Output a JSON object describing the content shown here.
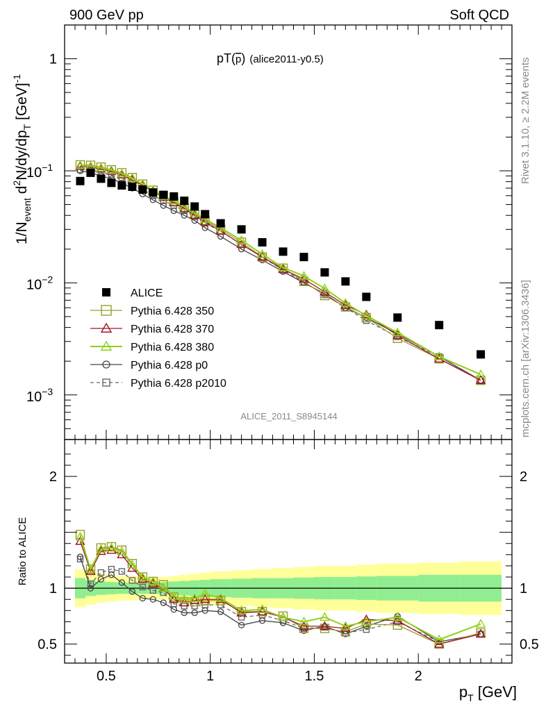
{
  "header": {
    "left": "900 GeV pp",
    "right": "Soft QCD"
  },
  "side_text": {
    "top": "Rivet 3.1.10, ≥ 2.2M events",
    "bottom": "mcplots.cern.ch [arXiv:1306.3436]"
  },
  "colors": {
    "alice": "#000000",
    "p350": "#9b9b2a",
    "p370": "#a0162a",
    "p380": "#8fd11c",
    "p0": "#444444",
    "p2010": "#666666",
    "band_inner": "#90ee90",
    "band_outer": "#ffff99"
  },
  "chart_data": [
    {
      "type": "scatter",
      "panel": "main",
      "title": "pT(p̅) (alice2011-y0.5)",
      "title_main": "pT(",
      "title_p": "p",
      "title_close": ")",
      "title_suffix": "(alice2011-y0.5)",
      "ylabel": "1/N_event d²N/dy/dp_T [GeV⁻¹]",
      "ylabel_parts": {
        "a": "1/N",
        "b": "event",
        "c": " d",
        "d": "2",
        "e": "N/dy/dp",
        "f": "T",
        "g": " [GeV]",
        "h": "-1"
      },
      "yscale": "log",
      "ylim": [
        0.0004,
        2
      ],
      "xlim": [
        0.3,
        2.45
      ],
      "y_ticks": [
        {
          "value": 1,
          "label": "1"
        },
        {
          "value": 0.1,
          "base": "10",
          "exp": "−1"
        },
        {
          "value": 0.01,
          "base": "10",
          "exp": "−2"
        },
        {
          "value": 0.001,
          "base": "10",
          "exp": "−3"
        }
      ],
      "watermark": "ALICE_2011_S8945144",
      "legend_position": "middle-left",
      "x": [
        0.375,
        0.425,
        0.475,
        0.525,
        0.575,
        0.625,
        0.675,
        0.725,
        0.775,
        0.825,
        0.875,
        0.925,
        0.975,
        1.05,
        1.15,
        1.25,
        1.35,
        1.45,
        1.55,
        1.65,
        1.75,
        1.9,
        2.1,
        2.3
      ],
      "series": [
        {
          "key": "alice",
          "name": "ALICE",
          "marker": "square-filled",
          "values": [
            0.081,
            0.096,
            0.085,
            0.078,
            0.074,
            0.072,
            0.068,
            0.064,
            0.061,
            0.059,
            0.054,
            0.048,
            0.041,
            0.034,
            0.03,
            0.023,
            0.019,
            0.017,
            0.0124,
            0.0103,
            0.0075,
            0.0049,
            0.0042,
            0.0023
          ]
        },
        {
          "key": "p350",
          "name": "Pythia 6.428 350",
          "marker": "square-open",
          "values": [
            0.113,
            0.112,
            0.108,
            0.102,
            0.096,
            0.087,
            0.076,
            0.067,
            0.06,
            0.053,
            0.047,
            0.041,
            0.036,
            0.03,
            0.023,
            0.017,
            0.0135,
            0.0103,
            0.0077,
            0.0061,
            0.0049,
            0.0032,
            0.0021,
            0.00135
          ]
        },
        {
          "key": "p370",
          "name": "Pythia 6.428 370",
          "marker": "triangle-open",
          "values": [
            0.11,
            0.108,
            0.104,
            0.099,
            0.092,
            0.083,
            0.074,
            0.066,
            0.058,
            0.052,
            0.046,
            0.04,
            0.035,
            0.029,
            0.022,
            0.017,
            0.0132,
            0.0108,
            0.0083,
            0.0063,
            0.0052,
            0.0034,
            0.0021,
            0.00135
          ]
        },
        {
          "key": "p380",
          "name": "Pythia 6.428 380",
          "marker": "triangle-open",
          "values": [
            0.112,
            0.11,
            0.106,
            0.101,
            0.094,
            0.086,
            0.076,
            0.067,
            0.059,
            0.054,
            0.048,
            0.042,
            0.037,
            0.031,
            0.024,
            0.018,
            0.0137,
            0.0115,
            0.0089,
            0.0066,
            0.0051,
            0.0036,
            0.0022,
            0.00152
          ]
        },
        {
          "key": "p0",
          "name": "Pythia 6.428 p0",
          "marker": "circle-open",
          "values": [
            0.1,
            0.096,
            0.09,
            0.085,
            0.078,
            0.07,
            0.062,
            0.055,
            0.049,
            0.044,
            0.04,
            0.036,
            0.031,
            0.026,
            0.02,
            0.016,
            0.0126,
            0.01,
            0.008,
            0.006,
            0.0049,
            0.0035,
            0.0022,
            0.00135
          ]
        },
        {
          "key": "p2010",
          "name": "Pythia 6.428 p2010",
          "marker": "square-open-dashed",
          "values": [
            0.102,
            0.1,
            0.097,
            0.092,
            0.086,
            0.077,
            0.068,
            0.06,
            0.054,
            0.049,
            0.044,
            0.039,
            0.034,
            0.029,
            0.022,
            0.017,
            0.013,
            0.0102,
            0.0078,
            0.006,
            0.0046,
            0.0033,
            0.0022,
            0.00135
          ]
        }
      ]
    },
    {
      "type": "line",
      "panel": "ratio",
      "ylabel": "Ratio to ALICE",
      "xlabel_main": "p",
      "xlabel_sub": "T",
      "xlabel_unit": " [GeV]",
      "ylim": [
        0.33,
        2.33
      ],
      "xlim": [
        0.3,
        2.45
      ],
      "y_ticks": [
        {
          "value": 2,
          "label": "2"
        },
        {
          "value": 1,
          "label": "1"
        },
        {
          "value": 0.5,
          "label": "0.5"
        }
      ],
      "x_ticks": [
        {
          "value": 0.5,
          "label": "0.5"
        },
        {
          "value": 1,
          "label": "1"
        },
        {
          "value": 1.5,
          "label": "1.5"
        },
        {
          "value": 2,
          "label": "2"
        }
      ],
      "band_edges": [
        0.35,
        0.4,
        0.45,
        0.5,
        0.55,
        0.6,
        0.65,
        0.7,
        0.75,
        0.8,
        0.85,
        0.9,
        0.95,
        1.0,
        1.1,
        1.2,
        1.3,
        1.4,
        1.5,
        1.6,
        1.7,
        1.8,
        2.0,
        2.2,
        2.4
      ],
      "band_inner": [
        0.09,
        0.07,
        0.06,
        0.055,
        0.05,
        0.05,
        0.05,
        0.05,
        0.055,
        0.06,
        0.065,
        0.07,
        0.075,
        0.08,
        0.085,
        0.09,
        0.09,
        0.095,
        0.1,
        0.1,
        0.105,
        0.11,
        0.12,
        0.12
      ],
      "band_outer": [
        0.17,
        0.15,
        0.13,
        0.12,
        0.11,
        0.11,
        0.1,
        0.1,
        0.1,
        0.11,
        0.12,
        0.13,
        0.14,
        0.15,
        0.16,
        0.17,
        0.18,
        0.19,
        0.2,
        0.2,
        0.21,
        0.22,
        0.23,
        0.24
      ],
      "x": [
        0.375,
        0.425,
        0.475,
        0.525,
        0.575,
        0.625,
        0.675,
        0.725,
        0.775,
        0.825,
        0.875,
        0.925,
        0.975,
        1.05,
        1.15,
        1.25,
        1.35,
        1.45,
        1.55,
        1.65,
        1.75,
        1.9,
        2.1,
        2.3
      ],
      "series": [
        {
          "key": "p350",
          "values": [
            1.48,
            1.17,
            1.36,
            1.37,
            1.34,
            1.22,
            1.1,
            1.06,
            1.03,
            0.92,
            0.88,
            0.88,
            0.89,
            0.89,
            0.79,
            0.79,
            0.75,
            0.64,
            0.64,
            0.61,
            0.68,
            0.67,
            0.5,
            0.6
          ]
        },
        {
          "key": "p370",
          "values": [
            1.42,
            1.15,
            1.33,
            1.34,
            1.3,
            1.18,
            1.08,
            1.04,
            1.0,
            0.9,
            0.87,
            0.89,
            0.9,
            0.9,
            0.78,
            0.79,
            0.74,
            0.66,
            0.66,
            0.64,
            0.72,
            0.71,
            0.5,
            0.59
          ]
        },
        {
          "key": "p380",
          "values": [
            1.46,
            1.17,
            1.35,
            1.36,
            1.33,
            1.21,
            1.1,
            1.06,
            1.0,
            0.93,
            0.9,
            0.91,
            0.95,
            0.91,
            0.8,
            0.81,
            0.74,
            0.7,
            0.74,
            0.66,
            0.7,
            0.74,
            0.54,
            0.68
          ]
        },
        {
          "key": "p0",
          "values": [
            1.28,
            1.0,
            1.08,
            1.12,
            1.05,
            0.97,
            0.91,
            0.9,
            0.87,
            0.81,
            0.78,
            0.78,
            0.8,
            0.79,
            0.67,
            0.71,
            0.69,
            0.62,
            0.66,
            0.59,
            0.66,
            0.75,
            0.52,
            0.59
          ]
        },
        {
          "key": "p2010",
          "values": [
            1.26,
            1.04,
            1.14,
            1.17,
            1.15,
            1.07,
            1.01,
            0.98,
            0.96,
            0.86,
            0.84,
            0.84,
            0.85,
            0.85,
            0.74,
            0.76,
            0.71,
            0.64,
            0.65,
            0.6,
            0.63,
            0.7,
            0.52,
            0.59
          ]
        }
      ]
    }
  ]
}
